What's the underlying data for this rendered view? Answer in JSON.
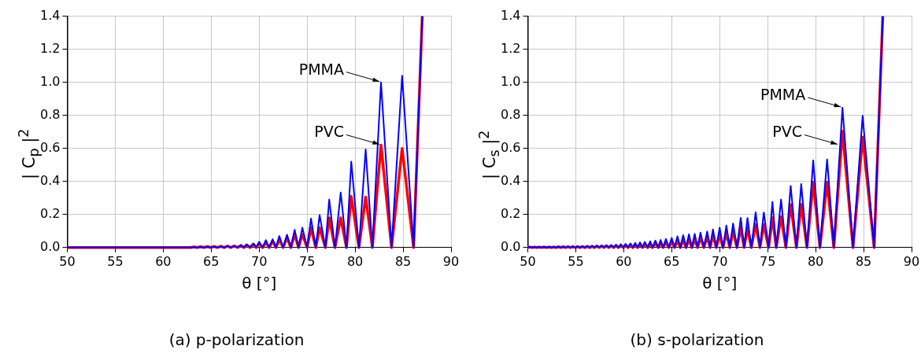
{
  "chart_data": [
    {
      "type": "line",
      "xlabel": "θ [°]",
      "ylabel": "| C$_{p}$ |$^{2}$",
      "marker": "none",
      "grid": true,
      "legend": false,
      "xlim": [
        50,
        90
      ],
      "xticks": [
        50,
        55,
        60,
        65,
        70,
        75,
        80,
        85,
        90
      ],
      "ylim": [
        0,
        1.4
      ],
      "yticks": [
        {
          "value": 0,
          "label": "0.0"
        },
        {
          "value": 0.2,
          "label": "0.2"
        },
        {
          "value": 0.4,
          "label": "0.4"
        },
        {
          "value": 0.6,
          "label": "0.6"
        },
        {
          "value": 0.8,
          "label": "0.8"
        },
        {
          "value": 1,
          "label": "1.0"
        },
        {
          "value": 1.2,
          "label": "1.2"
        },
        {
          "value": 1.4,
          "label": "1.4"
        }
      ],
      "x": [
        50,
        62.85,
        63.2,
        63.55,
        63.9,
        64.25,
        64.6,
        64.95,
        65.3,
        65.65,
        66.0,
        66.35,
        66.7,
        67.05,
        67.4,
        67.75,
        68.1,
        68.4,
        68.7,
        69.05,
        69.4,
        69.7,
        70.0,
        70.35,
        70.7,
        71.05,
        71.4,
        71.75,
        72.1,
        72.5,
        72.9,
        73.3,
        73.7,
        74.1,
        74.5,
        75.0,
        75.4,
        75.9,
        76.3,
        76.9,
        77.3,
        77.9,
        78.5,
        79.1,
        79.6,
        80.4,
        81.1,
        81.8,
        82.7,
        83.8,
        84.9,
        86.1,
        87.0
      ],
      "series": [
        {
          "color": "#0000ff",
          "values": [
            0,
            0,
            0.002,
            0,
            0.003,
            0,
            0.004,
            0,
            0.005,
            0,
            0.007,
            0,
            0.009,
            0,
            0.01,
            0,
            0.015,
            0,
            0.02,
            0,
            0.025,
            0,
            0.035,
            0,
            0.045,
            0,
            0.05,
            0,
            0.07,
            0,
            0.078,
            0,
            0.107,
            0,
            0.12,
            0,
            0.175,
            0,
            0.197,
            0,
            0.29,
            0,
            0.333,
            0,
            0.52,
            0,
            0.594,
            0,
            1.0,
            0,
            1.04,
            0,
            1.4
          ]
        },
        {
          "color": "#ff0000",
          "values": [
            0,
            0,
            0.004,
            0,
            0.005,
            0,
            0.006,
            0,
            0.007,
            0,
            0.008,
            0,
            0.009,
            0,
            0.01,
            0,
            0.012,
            0,
            0.015,
            0,
            0.02,
            0,
            0.025,
            0,
            0.03,
            0,
            0.04,
            0,
            0.05,
            0,
            0.06,
            0,
            0.08,
            0,
            0.08,
            0,
            0.12,
            0,
            0.12,
            0,
            0.18,
            0,
            0.18,
            0,
            0.31,
            0,
            0.306,
            0,
            0.62,
            0,
            0.6,
            0,
            1.4
          ]
        }
      ],
      "annotations": [
        {
          "text": "PMMA",
          "x": 82.7,
          "y": 1.0
        },
        {
          "text": "PVC",
          "x": 82.7,
          "y": 0.62
        },
        "(a)  p-polarization"
      ]
    },
    {
      "type": "line",
      "xlabel": "θ [°]",
      "ylabel": "| C$_{s}$ |$^{2}$",
      "marker": "none",
      "grid": true,
      "legend": false,
      "xlim": [
        50,
        90
      ],
      "xticks": [
        50,
        55,
        60,
        65,
        70,
        75,
        80,
        85,
        90
      ],
      "ylim": [
        0,
        1.4
      ],
      "yticks": [
        {
          "value": 0,
          "label": "0.0"
        },
        {
          "value": 0.2,
          "label": "0.2"
        },
        {
          "value": 0.4,
          "label": "0.4"
        },
        {
          "value": 0.6,
          "label": "0.6"
        },
        {
          "value": 0.8,
          "label": "0.8"
        },
        {
          "value": 1,
          "label": "1.0"
        },
        {
          "value": 1.2,
          "label": "1.2"
        },
        {
          "value": 1.4,
          "label": "1.4"
        }
      ],
      "x": [
        50,
        50.2,
        50.45,
        50.7,
        50.95,
        51.2,
        51.45,
        51.7,
        51.95,
        52.2,
        52.45,
        52.7,
        52.95,
        53.2,
        53.45,
        53.7,
        53.95,
        54.2,
        54.45,
        54.7,
        54.95,
        55.2,
        55.45,
        55.7,
        55.95,
        56.2,
        56.45,
        56.7,
        56.95,
        57.2,
        57.45,
        57.7,
        57.95,
        58.2,
        58.45,
        58.7,
        58.95,
        59.2,
        59.45,
        59.7,
        59.95,
        60.2,
        60.45,
        60.7,
        60.95,
        61.2,
        61.45,
        61.7,
        61.95,
        62.2,
        62.5,
        62.75,
        63.0,
        63.3,
        63.6,
        63.85,
        64.1,
        64.4,
        64.7,
        65.0,
        65.3,
        65.6,
        65.9,
        66.2,
        66.5,
        66.8,
        67.1,
        67.4,
        67.7,
        68.0,
        68.35,
        68.7,
        69.0,
        69.3,
        69.65,
        70.0,
        70.35,
        70.7,
        71.05,
        71.4,
        71.8,
        72.2,
        72.55,
        72.9,
        73.3,
        73.75,
        74.2,
        74.6,
        75.1,
        75.5,
        75.9,
        76.4,
        76.9,
        77.4,
        78.0,
        78.5,
        79.1,
        79.75,
        80.45,
        81.2,
        81.9,
        82.8,
        83.9,
        84.9,
        86.1,
        87.0
      ],
      "series": [
        {
          "color": "#0000ff",
          "values": [
            0,
            0.004,
            0,
            0.004,
            0,
            0.004,
            0,
            0.005,
            0,
            0.005,
            0,
            0.005,
            0,
            0.006,
            0,
            0.006,
            0,
            0.007,
            0,
            0.008,
            0,
            0.008,
            0,
            0.009,
            0,
            0.01,
            0,
            0.011,
            0,
            0.012,
            0,
            0.013,
            0,
            0.015,
            0,
            0.016,
            0,
            0.018,
            0,
            0.02,
            0,
            0.022,
            0,
            0.025,
            0,
            0.028,
            0,
            0.031,
            0,
            0.034,
            0,
            0.038,
            0,
            0.042,
            0,
            0.046,
            0,
            0.052,
            0,
            0.058,
            0,
            0.068,
            0,
            0.075,
            0,
            0.08,
            0,
            0.082,
            0,
            0.09,
            0,
            0.097,
            0,
            0.11,
            0,
            0.12,
            0,
            0.134,
            0,
            0.145,
            0,
            0.18,
            0,
            0.179,
            0,
            0.213,
            0,
            0.212,
            0,
            0.276,
            0,
            0.291,
            0,
            0.373,
            0,
            0.384,
            0,
            0.527,
            0,
            0.533,
            0,
            0.846,
            0,
            0.797,
            0,
            1.4
          ]
        },
        {
          "color": "#ff0000",
          "values": [
            0,
            0.003,
            0,
            0.003,
            0,
            0.003,
            0,
            0.003,
            0,
            0.003,
            0,
            0.003,
            0,
            0.004,
            0,
            0.004,
            0,
            0.005,
            0,
            0.005,
            0,
            0.005,
            0,
            0.006,
            0,
            0.007,
            0,
            0.007,
            0,
            0.008,
            0,
            0.008,
            0,
            0.01,
            0,
            0.01,
            0,
            0.012,
            0,
            0.013,
            0,
            0.014,
            0,
            0.016,
            0,
            0.018,
            0,
            0.02,
            0,
            0.022,
            0,
            0.025,
            0,
            0.027,
            0,
            0.03,
            0,
            0.034,
            0,
            0.038,
            0,
            0.044,
            0,
            0.049,
            0,
            0.05,
            0,
            0.05,
            0,
            0.06,
            0,
            0.065,
            0,
            0.075,
            0,
            0.08,
            0,
            0.09,
            0,
            0.1,
            0,
            0.12,
            0,
            0.12,
            0,
            0.14,
            0,
            0.139,
            0,
            0.18,
            0,
            0.187,
            0,
            0.26,
            0,
            0.261,
            0,
            0.396,
            0,
            0.396,
            0,
            0.704,
            0,
            0.669,
            0,
            1.4
          ]
        }
      ],
      "annotations": [
        {
          "text": "PMMA",
          "x": 82.8,
          "y": 0.846
        },
        {
          "text": "PVC",
          "x": 82.45,
          "y": 0.62
        },
        "(b)  s-polarization"
      ]
    }
  ]
}
